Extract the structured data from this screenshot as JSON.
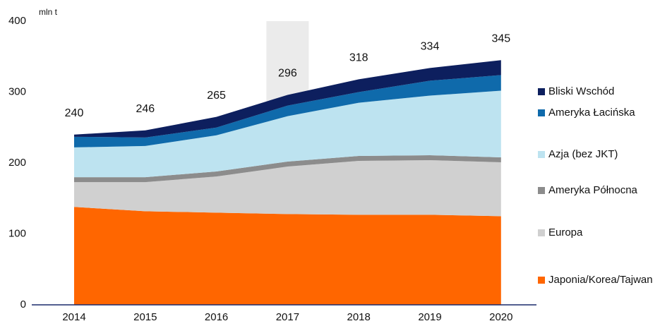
{
  "chart_data": {
    "type": "stacked_area",
    "y_label": "mln t",
    "categories": [
      "2014",
      "2015",
      "2016",
      "2017",
      "2018",
      "2019",
      "2020"
    ],
    "series": [
      {
        "name": "Japonia/Korea/Tajwan",
        "color": "#ff6600",
        "values": [
          138,
          132,
          130,
          128,
          127,
          127,
          125
        ]
      },
      {
        "name": "Europa",
        "color": "#d0d0d0",
        "values": [
          35,
          41,
          51,
          67,
          76,
          77,
          76
        ]
      },
      {
        "name": "Ameryka Północna",
        "color": "#8c8c8c",
        "values": [
          7,
          7,
          7,
          7,
          7,
          7,
          7
        ]
      },
      {
        "name": "Azja (bez JKT)",
        "color": "#bde3f0",
        "values": [
          42,
          44,
          51,
          64,
          75,
          84,
          94
        ]
      },
      {
        "name": "Ameryka Łacińska",
        "color": "#0f6aab",
        "values": [
          15,
          12,
          11,
          15,
          15,
          21,
          22
        ]
      },
      {
        "name": "Bliski Wschód",
        "color": "#0d1f5e",
        "values": [
          3,
          10,
          15,
          15,
          18,
          18,
          21
        ]
      }
    ],
    "totals": [
      240,
      246,
      265,
      296,
      318,
      334,
      345
    ],
    "highlight": "2017",
    "ylim": [
      0,
      400
    ],
    "yticks": [
      0,
      100,
      200,
      300,
      400
    ]
  }
}
